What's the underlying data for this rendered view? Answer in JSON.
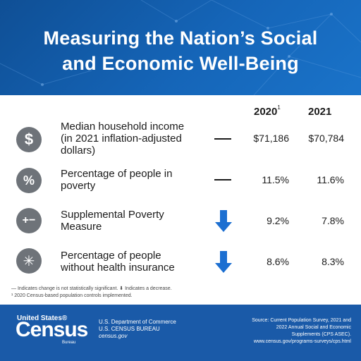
{
  "header": {
    "title_line1": "Measuring the Nation’s Social",
    "title_line2": "and Economic Well-Being"
  },
  "columns": [
    {
      "year": "2020",
      "sup": "1"
    },
    {
      "year": "2021",
      "sup": ""
    }
  ],
  "rows": [
    {
      "icon": "dollar-icon",
      "glyph": "$",
      "label_lines": [
        "Median household income",
        "(in 2021 inflation-adjusted",
        "dollars)"
      ],
      "change": "no-change",
      "v2020": "$71,186",
      "v2021": "$70,784"
    },
    {
      "icon": "percent-icon",
      "glyph": "%",
      "label_lines": [
        "Percentage of people in",
        "poverty"
      ],
      "change": "no-change",
      "v2020": "11.5%",
      "v2021": "11.6%"
    },
    {
      "icon": "plus-minus-icon",
      "glyph": "+−",
      "label_lines": [
        "Supplemental Poverty",
        "Measure"
      ],
      "change": "decrease",
      "v2020": "9.2%",
      "v2021": "7.8%"
    },
    {
      "icon": "medical-icon",
      "glyph": "✳",
      "label_lines": [
        "Percentage of people",
        "without health insurance"
      ],
      "change": "decrease",
      "v2020": "8.6%",
      "v2021": "8.3%"
    }
  ],
  "footnote": {
    "line1": "— Indicates change is not statistically significant.  ⬇ Indicates a decrease.",
    "line2": "¹ 2020 Census-based population controls implemented."
  },
  "footer": {
    "logo_top": "United States®",
    "logo_main": "Census",
    "logo_sub": "Bureau",
    "dept_line1": "U.S. Department of Commerce",
    "dept_line2": "U.S. CENSUS BUREAU",
    "dept_line3": "census.gov",
    "source_line1": "Source: Current Population Survey, 2021 and",
    "source_line2": "2022 Annual Social and Economic",
    "source_line3": "Supplements (CPS ASEC).",
    "source_line4": "www.census.gov/programs-surveys/cps.html"
  },
  "colors": {
    "header_blue": "#1565b8",
    "footer_blue": "#1a5aa8",
    "icon_gray": "#6e7379",
    "arrow_blue": "#1c6fd1"
  }
}
